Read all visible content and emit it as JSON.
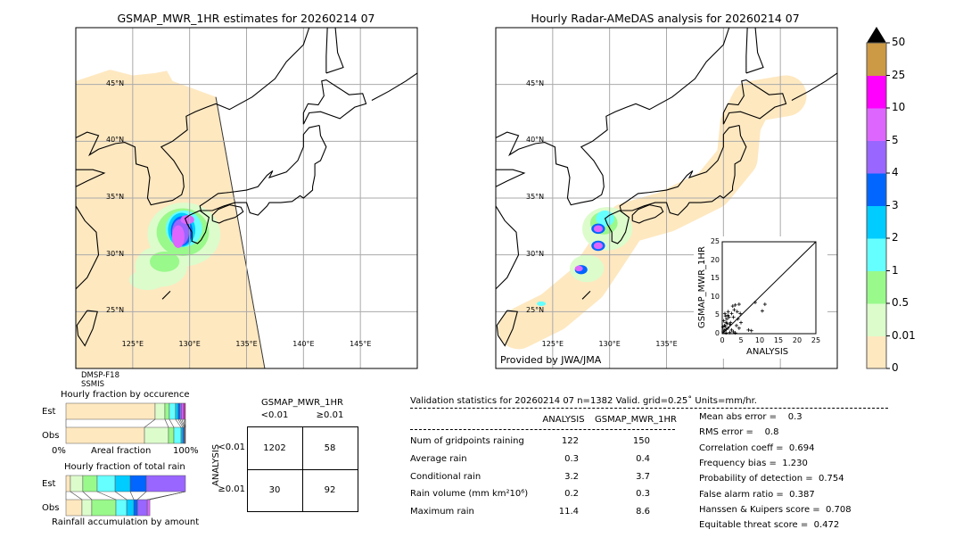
{
  "left_map": {
    "title": "GSMAP_MWR_1HR estimates for 20260214 07",
    "sensor_lines": [
      "DMSP-F18",
      "SSMIS"
    ]
  },
  "right_map": {
    "title": "Hourly Radar-AMeDAS analysis for 20260214 07",
    "credit": "Provided by JWA/JMA"
  },
  "map_axes": {
    "lat_labels": [
      "45°N",
      "40°N",
      "35°N",
      "30°N",
      "25°N"
    ],
    "lon_labels": [
      "125°E",
      "130°E",
      "135°E",
      "140°E",
      "145°E"
    ],
    "extent": {
      "lon": [
        120,
        150
      ],
      "lat": [
        20,
        50
      ]
    }
  },
  "colorbar": {
    "labels": [
      "0",
      "0.01",
      "0.5",
      "1",
      "2",
      "3",
      "4",
      "5",
      "10",
      "25",
      "50"
    ],
    "colors": [
      "#fee8c0",
      "#dcfccc",
      "#99f98b",
      "#66ffff",
      "#00ccff",
      "#0066ff",
      "#9966ff",
      "#dd66ff",
      "#ff00ff",
      "#cc9944"
    ],
    "extend": "max"
  },
  "scatter": {
    "xlabel": "ANALYSIS",
    "ylabel": "GSMAP_MWR_1HR",
    "ticks": [
      "0",
      "5",
      "10",
      "15",
      "20",
      "25"
    ],
    "range": [
      0,
      25
    ],
    "points": [
      [
        0.3,
        0.5
      ],
      [
        0.5,
        1
      ],
      [
        0.8,
        2
      ],
      [
        1,
        3
      ],
      [
        1.2,
        4
      ],
      [
        1.5,
        5
      ],
      [
        0.7,
        5.5
      ],
      [
        1,
        0.2
      ],
      [
        1.5,
        1.5
      ],
      [
        2,
        2.5
      ],
      [
        2.5,
        1
      ],
      [
        3,
        0.5
      ],
      [
        0.4,
        3.5
      ],
      [
        1.8,
        4.5
      ],
      [
        2.2,
        3
      ],
      [
        0.6,
        2.2
      ],
      [
        1.1,
        1.2
      ],
      [
        2.8,
        7.5
      ],
      [
        3.5,
        7.8
      ],
      [
        4.5,
        8
      ],
      [
        3.2,
        6.5
      ],
      [
        4,
        6
      ],
      [
        4.8,
        5.5
      ],
      [
        3,
        4.5
      ],
      [
        4.2,
        4
      ],
      [
        5,
        3
      ],
      [
        3.8,
        2.2
      ],
      [
        4.5,
        1.5
      ],
      [
        7,
        1
      ],
      [
        7.8,
        0.8
      ],
      [
        8.8,
        8.5
      ],
      [
        10.7,
        6.2
      ],
      [
        11.4,
        8
      ],
      [
        2.5,
        5.5
      ],
      [
        1.6,
        6
      ],
      [
        0.9,
        4.8
      ],
      [
        2,
        0.3
      ],
      [
        3.5,
        0.2
      ],
      [
        0.2,
        1.8
      ],
      [
        1.3,
        2.8
      ]
    ]
  },
  "occurrence": {
    "title": "Hourly fraction by occurence",
    "rows": [
      "Est",
      "Obs"
    ],
    "xlabel_left": "0%",
    "xlabel_mid": "Areal fraction",
    "xlabel_right": "100%",
    "est_pct": [
      74.6,
      8.2,
      3.7,
      5.2,
      2.2,
      1.5,
      1.5,
      1.5,
      1.1,
      0.5
    ],
    "obs_pct": [
      65.7,
      20.1,
      4.5,
      6.0,
      1.5,
      1.0,
      0.6,
      0.3,
      0.2,
      0.1
    ]
  },
  "total_rain": {
    "title": "Hourly fraction of total rain",
    "rows": [
      "Est",
      "Obs"
    ],
    "xlabel": "Rainfall accumulation by amount",
    "est_pct": [
      3.7,
      10.4,
      12,
      15,
      12.7,
      13.4,
      32.8,
      0,
      0
    ],
    "obs_pct": [
      13.4,
      8.2,
      20.2,
      9,
      6,
      3,
      8.2,
      2.2,
      0
    ]
  },
  "contingency": {
    "title": "GSMAP_MWR_1HR",
    "col_headers": [
      "<0.01",
      "≥0.01"
    ],
    "row_axis": "ANALYSIS",
    "row_headers": [
      "<0.01",
      "≥0.01"
    ],
    "cells": [
      [
        "1202",
        "58"
      ],
      [
        "30",
        "92"
      ]
    ]
  },
  "stats": {
    "header": "Validation statistics for 20260214 07  n=1382 Valid. grid=0.25˚ Units=mm/hr.",
    "columns": [
      "ANALYSIS",
      "GSMAP_MWR_1HR"
    ],
    "rows": [
      {
        "label": "Num of gridpoints raining",
        "analysis": "122",
        "gsmap": "150"
      },
      {
        "label": "Average rain",
        "analysis": "0.3",
        "gsmap": "0.4"
      },
      {
        "label": "Conditional rain",
        "analysis": "3.2",
        "gsmap": "3.7"
      },
      {
        "label": "Rain volume (mm km²10⁶)",
        "analysis": "0.2",
        "gsmap": "0.3"
      },
      {
        "label": "Maximum rain",
        "analysis": "11.4",
        "gsmap": "8.6"
      }
    ],
    "scores": [
      "Mean abs error =    0.3",
      "RMS error =    0.8",
      "Correlation coeff =  0.694",
      "Frequency bias =  1.230",
      "Probability of detection =  0.754",
      "False alarm ratio =  0.387",
      "Hanssen & Kuipers score =  0.708",
      "Equitable threat score =  0.472"
    ]
  }
}
